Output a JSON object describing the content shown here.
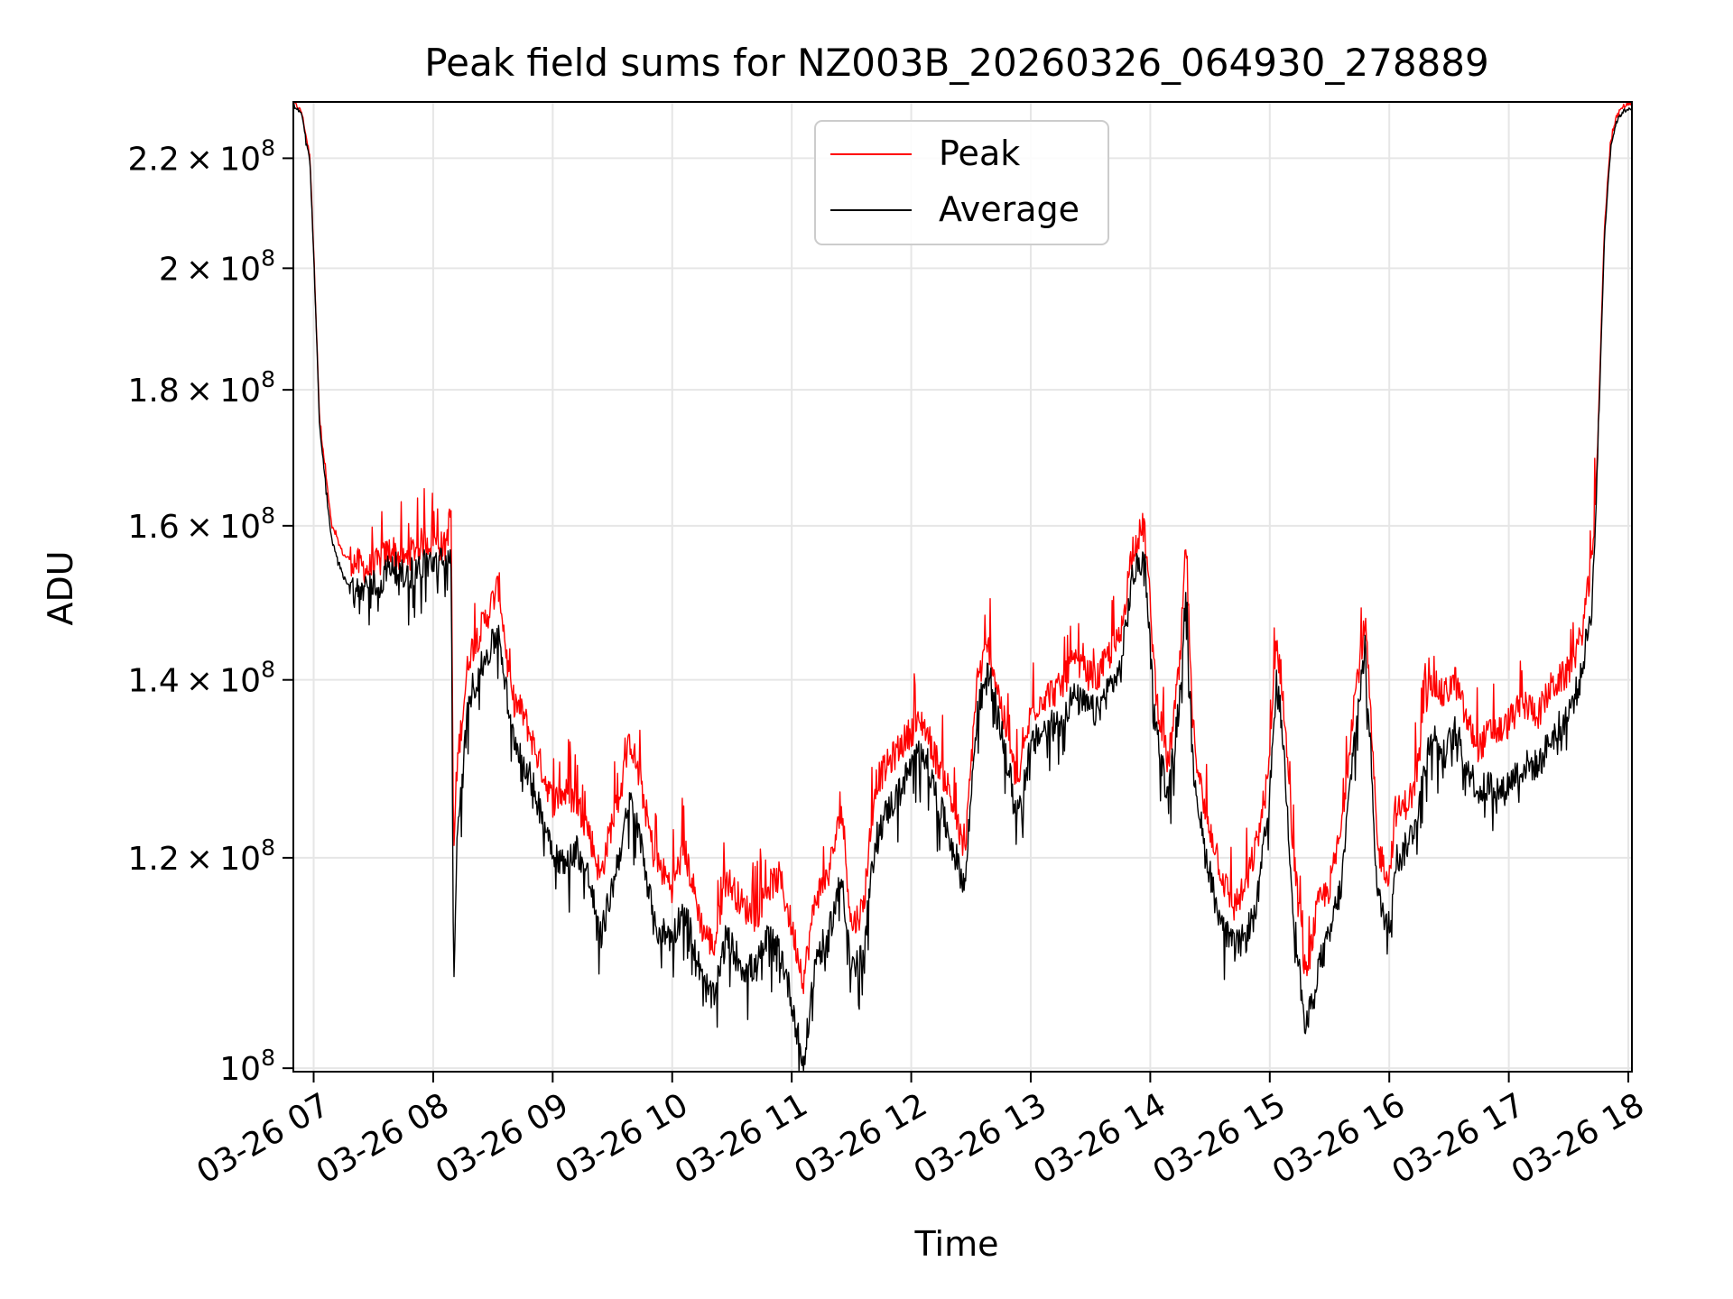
{
  "chart_data": {
    "type": "line",
    "title": "Peak field sums for NZ003B_20260326_064930_278889",
    "xlabel": "Time",
    "ylabel": "ADU",
    "yscale": "log",
    "ylim": [
      99700000,
      231000000
    ],
    "xlim": [
      6.83,
      18.03
    ],
    "grid": true,
    "legend_position": "top-center",
    "x_ticks": [
      {
        "value": 7,
        "label": "03-26 07"
      },
      {
        "value": 8,
        "label": "03-26 08"
      },
      {
        "value": 9,
        "label": "03-26 09"
      },
      {
        "value": 10,
        "label": "03-26 10"
      },
      {
        "value": 11,
        "label": "03-26 11"
      },
      {
        "value": 12,
        "label": "03-26 12"
      },
      {
        "value": 13,
        "label": "03-26 13"
      },
      {
        "value": 14,
        "label": "03-26 14"
      },
      {
        "value": 15,
        "label": "03-26 15"
      },
      {
        "value": 16,
        "label": "03-26 16"
      },
      {
        "value": 17,
        "label": "03-26 17"
      },
      {
        "value": 18,
        "label": "03-26 18"
      }
    ],
    "y_ticks": [
      {
        "value": 100000000,
        "mantissa": "",
        "exponent": "8"
      },
      {
        "value": 120000000,
        "mantissa": "1.2",
        "exponent": "8"
      },
      {
        "value": 140000000,
        "mantissa": "1.4",
        "exponent": "8"
      },
      {
        "value": 160000000,
        "mantissa": "1.6",
        "exponent": "8"
      },
      {
        "value": 180000000,
        "mantissa": "1.8",
        "exponent": "8"
      },
      {
        "value": 200000000,
        "mantissa": "2",
        "exponent": "8"
      },
      {
        "value": 220000000,
        "mantissa": "2.2",
        "exponent": "8"
      }
    ],
    "x_hours": [
      6.83,
      6.9,
      6.97,
      7.05,
      7.15,
      7.25,
      7.35,
      7.45,
      7.55,
      7.65,
      7.75,
      7.85,
      7.95,
      8.1,
      8.15,
      8.17,
      8.2,
      8.3,
      8.45,
      8.55,
      8.65,
      8.75,
      8.85,
      9.0,
      9.1,
      9.2,
      9.3,
      9.4,
      9.5,
      9.55,
      9.65,
      9.75,
      9.85,
      10.0,
      10.1,
      10.25,
      10.35,
      10.45,
      10.5,
      10.6,
      10.7,
      10.8,
      10.9,
      11.0,
      11.1,
      11.2,
      11.3,
      11.42,
      11.5,
      11.6,
      11.7,
      11.8,
      11.9,
      12.0,
      12.1,
      12.2,
      12.3,
      12.45,
      12.55,
      12.65,
      12.75,
      12.85,
      12.9,
      13.0,
      13.1,
      13.25,
      13.35,
      13.45,
      13.55,
      13.65,
      13.75,
      13.85,
      13.95,
      14.05,
      14.15,
      14.25,
      14.3,
      14.35,
      14.45,
      14.55,
      14.6,
      14.7,
      14.8,
      14.9,
      15.0,
      15.05,
      15.1,
      15.2,
      15.3,
      15.4,
      15.5,
      15.55,
      15.6,
      15.7,
      15.8,
      15.9,
      16.0,
      16.05,
      16.1,
      16.2,
      16.25,
      16.35,
      16.45,
      16.55,
      16.65,
      16.75,
      16.85,
      16.95,
      17.05,
      17.15,
      17.25,
      17.35,
      17.5,
      17.6,
      17.7,
      17.75,
      17.8,
      17.85,
      17.9,
      17.95,
      18.03
    ],
    "series": [
      {
        "name": "Peak",
        "color": "#ff0000",
        "values": [
          231000000,
          229000000,
          220000000,
          175000000,
          160000000,
          156000000,
          155000000,
          154000000,
          155000000,
          157000000,
          155000000,
          157000000,
          158000000,
          157000000,
          162000000,
          120000000,
          130000000,
          143000000,
          148000000,
          152000000,
          138000000,
          136000000,
          132000000,
          126000000,
          127000000,
          126000000,
          123000000,
          118000000,
          124000000,
          126000000,
          133000000,
          127000000,
          120000000,
          117000000,
          121000000,
          113000000,
          111000000,
          118000000,
          117000000,
          115000000,
          114000000,
          117000000,
          118000000,
          113000000,
          108000000,
          116000000,
          118000000,
          125000000,
          113000000,
          115000000,
          128000000,
          130000000,
          132000000,
          134000000,
          135000000,
          131000000,
          128000000,
          120000000,
          140000000,
          144000000,
          137000000,
          130000000,
          128000000,
          136000000,
          138000000,
          139000000,
          142000000,
          141000000,
          140000000,
          143000000,
          145000000,
          157000000,
          160000000,
          138000000,
          130000000,
          142000000,
          158000000,
          135000000,
          125000000,
          121000000,
          118000000,
          115000000,
          117000000,
          122000000,
          130000000,
          145000000,
          140000000,
          120000000,
          108000000,
          115000000,
          117000000,
          120000000,
          123000000,
          137000000,
          147000000,
          121000000,
          118000000,
          125000000,
          125000000,
          127000000,
          131000000,
          140000000,
          138000000,
          140000000,
          135000000,
          132000000,
          134000000,
          134000000,
          136000000,
          137000000,
          136000000,
          139000000,
          141000000,
          145000000,
          155000000,
          175000000,
          207000000,
          223000000,
          228000000,
          230000000,
          231000000
        ],
        "values_note": "approximate envelope of the dense noisy trace"
      },
      {
        "name": "Average",
        "color": "#000000",
        "values": [
          230500000,
          228500000,
          219000000,
          174000000,
          158000000,
          153000000,
          151000000,
          152000000,
          152000000,
          155000000,
          153000000,
          154000000,
          155000000,
          155000000,
          156000000,
          107000000,
          121000000,
          138000000,
          143000000,
          146000000,
          134000000,
          131000000,
          127000000,
          121000000,
          119000000,
          121000000,
          118000000,
          112000000,
          117000000,
          120000000,
          126000000,
          121000000,
          113000000,
          112000000,
          115000000,
          108000000,
          106000000,
          112000000,
          111000000,
          109000000,
          109000000,
          112000000,
          111000000,
          106000000,
          100000000,
          110000000,
          112000000,
          118000000,
          109000000,
          110000000,
          122000000,
          125000000,
          127000000,
          130000000,
          132000000,
          127000000,
          123000000,
          117000000,
          136000000,
          141000000,
          134000000,
          127000000,
          125000000,
          132000000,
          134000000,
          135000000,
          138000000,
          137000000,
          136000000,
          139000000,
          141000000,
          153000000,
          156000000,
          134000000,
          126000000,
          138000000,
          152000000,
          131000000,
          121000000,
          116000000,
          113000000,
          111000000,
          112000000,
          116000000,
          126000000,
          140000000,
          135000000,
          114000000,
          103000000,
          109000000,
          112000000,
          115000000,
          117000000,
          132000000,
          144000000,
          116000000,
          113000000,
          120000000,
          120000000,
          123000000,
          126000000,
          134000000,
          131000000,
          134000000,
          130000000,
          127000000,
          128000000,
          127000000,
          129000000,
          130000000,
          130000000,
          133000000,
          136000000,
          140000000,
          150000000,
          173000000,
          205000000,
          222000000,
          227000000,
          229000000,
          230000000
        ]
      }
    ]
  }
}
